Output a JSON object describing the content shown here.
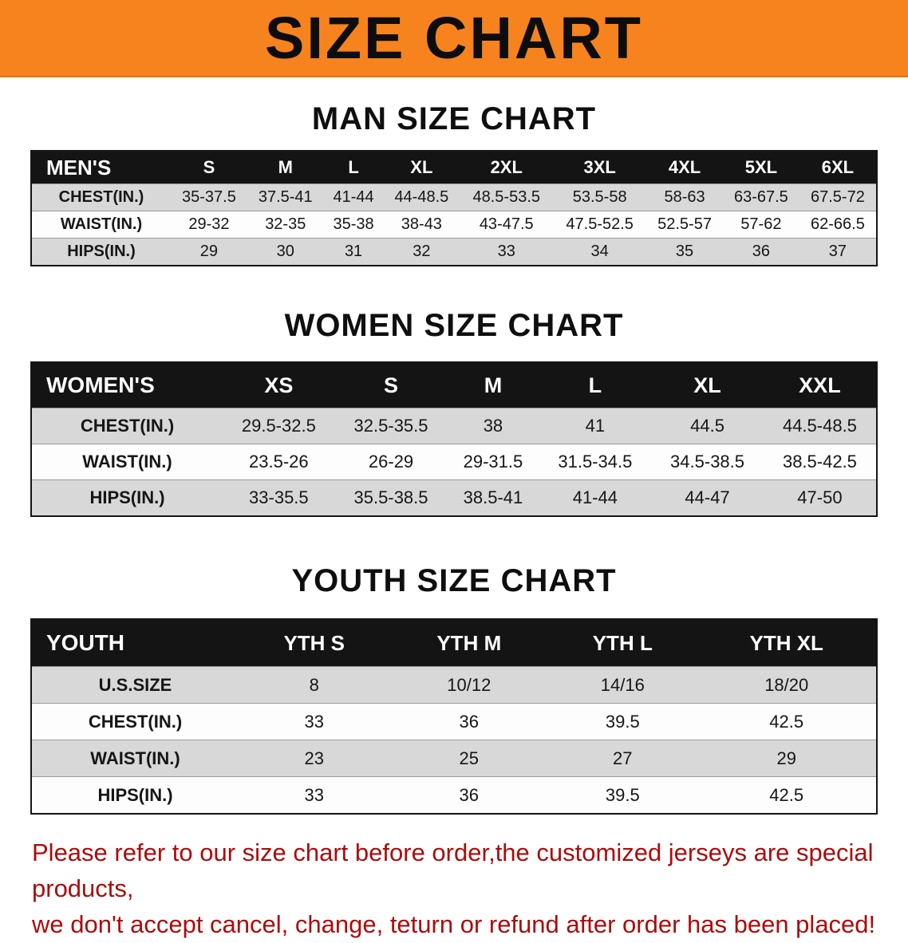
{
  "banner": {
    "title": "SIZE CHART"
  },
  "colors": {
    "banner_bg": "#f6831d",
    "table_header_bg": "#141414",
    "shade_row_bg": "#d8d8d8",
    "footer_text": "#ad0b0b"
  },
  "sections": {
    "men": {
      "heading": "MAN SIZE CHART",
      "header": [
        "MEN'S",
        "S",
        "M",
        "L",
        "XL",
        "2XL",
        "3XL",
        "4XL",
        "5XL",
        "6XL"
      ],
      "rows": [
        {
          "label": "CHEST(IN.)",
          "values": [
            "35-37.5",
            "37.5-41",
            "41-44",
            "44-48.5",
            "48.5-53.5",
            "53.5-58",
            "58-63",
            "63-67.5",
            "67.5-72"
          ]
        },
        {
          "label": "WAIST(IN.)",
          "values": [
            "29-32",
            "32-35",
            "35-38",
            "38-43",
            "43-47.5",
            "47.5-52.5",
            "52.5-57",
            "57-62",
            "62-66.5"
          ]
        },
        {
          "label": "HIPS(IN.)",
          "values": [
            "29",
            "30",
            "31",
            "32",
            "33",
            "34",
            "35",
            "36",
            "37"
          ]
        }
      ]
    },
    "women": {
      "heading": "WOMEN SIZE CHART",
      "header": [
        "WOMEN'S",
        "XS",
        "S",
        "M",
        "L",
        "XL",
        "XXL"
      ],
      "rows": [
        {
          "label": "CHEST(IN.)",
          "values": [
            "29.5-32.5",
            "32.5-35.5",
            "38",
            "41",
            "44.5",
            "44.5-48.5"
          ]
        },
        {
          "label": "WAIST(IN.)",
          "values": [
            "23.5-26",
            "26-29",
            "29-31.5",
            "31.5-34.5",
            "34.5-38.5",
            "38.5-42.5"
          ]
        },
        {
          "label": "HIPS(IN.)",
          "values": [
            "33-35.5",
            "35.5-38.5",
            "38.5-41",
            "41-44",
            "44-47",
            "47-50"
          ]
        }
      ]
    },
    "youth": {
      "heading": "YOUTH SIZE CHART",
      "header": [
        "YOUTH",
        "YTH S",
        "YTH M",
        "YTH L",
        "YTH XL"
      ],
      "rows": [
        {
          "label": "U.S.SIZE",
          "values": [
            "8",
            "10/12",
            "14/16",
            "18/20"
          ]
        },
        {
          "label": "CHEST(IN.)",
          "values": [
            "33",
            "36",
            "39.5",
            "42.5"
          ]
        },
        {
          "label": "WAIST(IN.)",
          "values": [
            "23",
            "25",
            "27",
            "29"
          ]
        },
        {
          "label": "HIPS(IN.)",
          "values": [
            "33",
            "36",
            "39.5",
            "42.5"
          ]
        }
      ]
    }
  },
  "footer": {
    "line1": "Please refer to our size chart before order,the customized jerseys are special products,",
    "line2": "we don't accept cancel, change, teturn or refund after order has been placed!"
  }
}
